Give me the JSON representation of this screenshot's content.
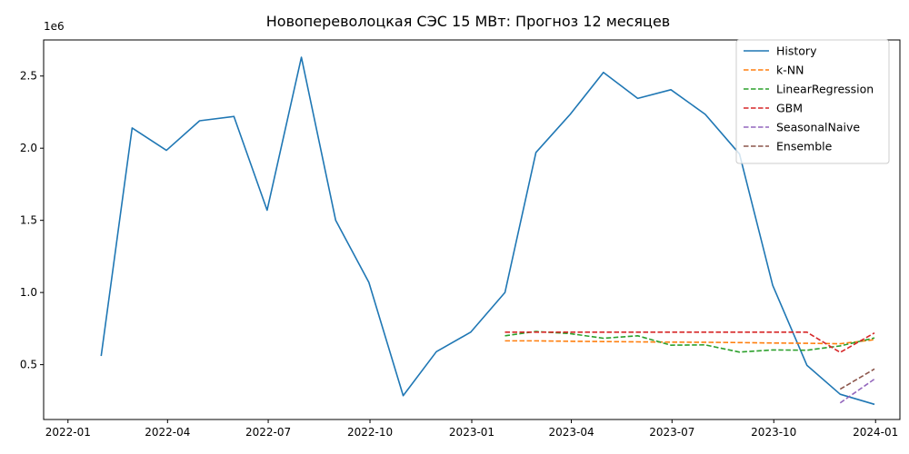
{
  "chart_data": {
    "type": "line",
    "title": "Новопереволоцкая СЭС 15 МВт: Прогноз 12 месяцев",
    "xlabel": "",
    "ylabel": "",
    "y_offset_label": "1e6",
    "y_multiplier": 1000000,
    "xlim": [
      "2021-12-10",
      "2024-01-23"
    ],
    "ylim": [
      0.12,
      2.75
    ],
    "x_ticks": [
      "2022-01-01",
      "2022-04-01",
      "2022-07-01",
      "2022-10-01",
      "2023-01-01",
      "2023-04-01",
      "2023-07-01",
      "2023-10-01",
      "2024-01-01"
    ],
    "x_tick_labels": [
      "2022-01",
      "2022-04",
      "2022-07",
      "2022-10",
      "2023-01",
      "2023-04",
      "2023-07",
      "2023-10",
      "2024-01"
    ],
    "y_ticks": [
      0.5,
      1.0,
      1.5,
      2.0,
      2.5
    ],
    "y_tick_labels": [
      "0.5",
      "1.0",
      "1.5",
      "2.0",
      "2.5"
    ],
    "grid": false,
    "legend_position": "top-right",
    "series": [
      {
        "name": "History",
        "color": "#1f77b4",
        "dashed": false,
        "x": [
          "2022-01-31",
          "2022-02-28",
          "2022-03-31",
          "2022-04-30",
          "2022-05-31",
          "2022-06-30",
          "2022-07-31",
          "2022-08-31",
          "2022-09-30",
          "2022-10-31",
          "2022-11-30",
          "2022-12-31",
          "2023-01-31",
          "2023-02-28",
          "2023-03-31",
          "2023-04-30",
          "2023-05-31",
          "2023-06-30",
          "2023-07-31",
          "2023-08-31",
          "2023-09-30",
          "2023-10-31",
          "2023-11-30",
          "2023-12-31"
        ],
        "values": [
          0.56,
          2.14,
          1.985,
          2.19,
          2.22,
          1.57,
          2.63,
          1.5,
          1.07,
          0.285,
          0.59,
          0.725,
          1.0,
          1.97,
          2.235,
          2.525,
          2.345,
          2.405,
          2.235,
          1.96,
          1.05,
          0.495,
          0.295,
          0.225
        ]
      },
      {
        "name": "k-NN",
        "color": "#ff7f0e",
        "dashed": true,
        "x": [
          "2023-01-31",
          "2023-02-28",
          "2023-03-31",
          "2023-04-30",
          "2023-05-31",
          "2023-06-30",
          "2023-07-31",
          "2023-08-31",
          "2023-09-30",
          "2023-10-31",
          "2023-11-30",
          "2023-12-31"
        ],
        "values": [
          0.665,
          0.665,
          0.662,
          0.66,
          0.658,
          0.656,
          0.655,
          0.653,
          0.65,
          0.648,
          0.645,
          0.673
        ]
      },
      {
        "name": "LinearRegression",
        "color": "#2ca02c",
        "dashed": true,
        "x": [
          "2023-01-31",
          "2023-02-28",
          "2023-03-31",
          "2023-04-30",
          "2023-05-31",
          "2023-06-30",
          "2023-07-31",
          "2023-08-31",
          "2023-09-30",
          "2023-10-31",
          "2023-11-30",
          "2023-12-31"
        ],
        "values": [
          0.7,
          0.73,
          0.715,
          0.683,
          0.7,
          0.635,
          0.637,
          0.587,
          0.602,
          0.6,
          0.63,
          0.685
        ]
      },
      {
        "name": "GBM",
        "color": "#d62728",
        "dashed": true,
        "x": [
          "2023-01-31",
          "2023-02-28",
          "2023-03-31",
          "2023-04-30",
          "2023-05-31",
          "2023-06-30",
          "2023-07-31",
          "2023-08-31",
          "2023-09-30",
          "2023-10-31",
          "2023-11-30",
          "2023-12-31"
        ],
        "values": [
          0.725,
          0.725,
          0.725,
          0.725,
          0.725,
          0.725,
          0.725,
          0.725,
          0.725,
          0.725,
          0.585,
          0.72
        ]
      },
      {
        "name": "SeasonalNaive",
        "color": "#9467bd",
        "dashed": true,
        "x": [
          "2023-11-30",
          "2023-12-31"
        ],
        "values": [
          0.235,
          0.4
        ]
      },
      {
        "name": "Ensemble",
        "color": "#8c564b",
        "dashed": true,
        "x": [
          "2023-11-30",
          "2023-12-31"
        ],
        "values": [
          0.33,
          0.47
        ]
      }
    ]
  }
}
